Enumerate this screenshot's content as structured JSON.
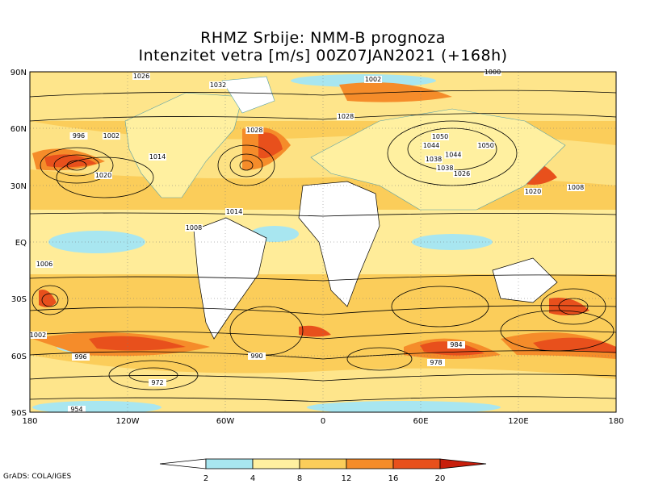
{
  "title_line1": "RHMZ Srbije: NMM-B prognoza",
  "title_line2": "Intenzitet vetra [m/s] 00Z07JAN2021 (+168h)",
  "credit": "GrADS: COLA/IGES",
  "axes": {
    "lat_labels": [
      "90N",
      "60N",
      "30N",
      "EQ",
      "30S",
      "60S",
      "90S"
    ],
    "lon_labels": [
      "180",
      "120W",
      "60W",
      "0",
      "60E",
      "120E",
      "180"
    ]
  },
  "colorbar": {
    "ticks": [
      "2",
      "4",
      "8",
      "12",
      "16",
      "20"
    ],
    "colors": [
      "#ffffff",
      "#a8e6f0",
      "#fff0a0",
      "#fbcd5a",
      "#f58c2a",
      "#e8501c",
      "#c81e0c"
    ]
  },
  "isobar_labels": [
    "1026",
    "1032",
    "1014",
    "1002",
    "1006",
    "1008",
    "1020",
    "996",
    "990",
    "1028",
    "1050",
    "1044",
    "1038",
    "1026",
    "1008",
    "984",
    "978",
    "972",
    "954",
    "1014",
    "1000",
    "1020",
    "1002"
  ],
  "pressure_centers": [
    {
      "label": "996",
      "lon": -150,
      "lat": 55
    },
    {
      "label": "1002",
      "lon": -130,
      "lat": 55
    },
    {
      "label": "1028",
      "lon": -42,
      "lat": 58
    },
    {
      "label": "1050",
      "lon": 100,
      "lat": 50
    },
    {
      "label": "1044",
      "lon": 80,
      "lat": 45
    },
    {
      "label": "1038",
      "lon": 75,
      "lat": 38
    }
  ]
}
